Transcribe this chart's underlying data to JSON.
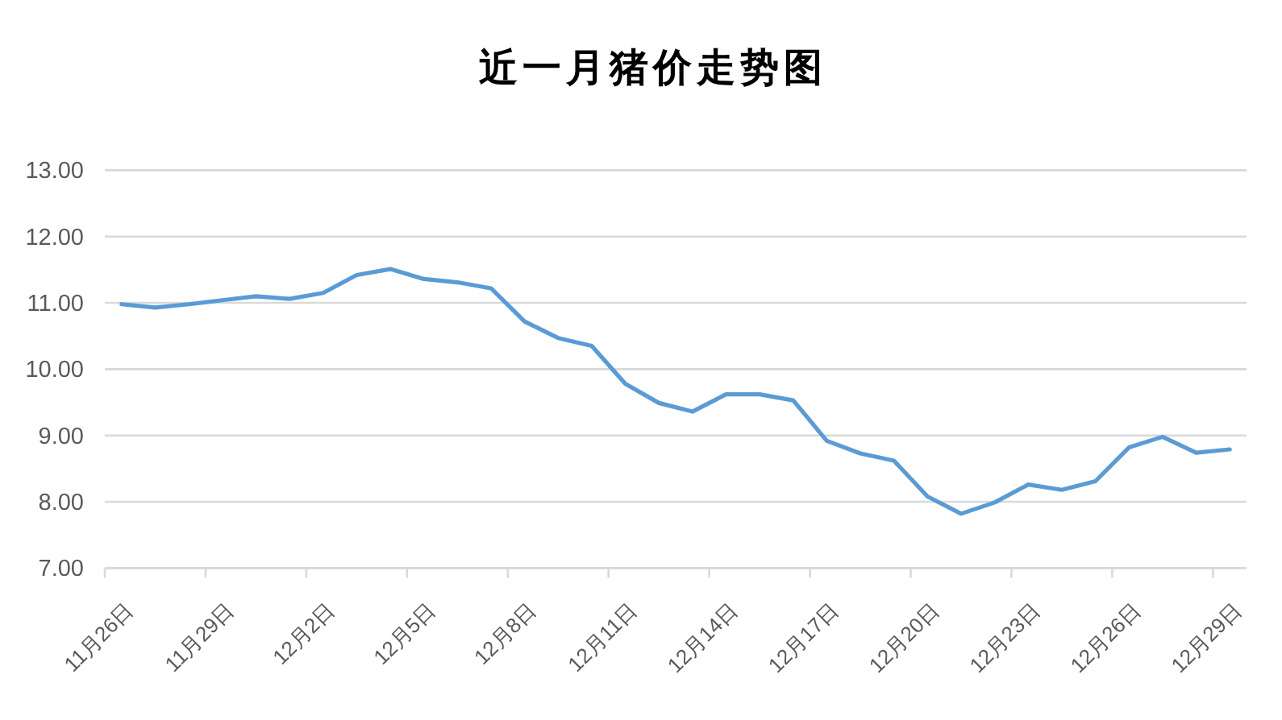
{
  "chart_data": {
    "type": "line",
    "title": "近一月猪价走势图",
    "categories": [
      "11月26日",
      null,
      null,
      "11月29日",
      null,
      null,
      "12月2日",
      null,
      null,
      "12月5日",
      null,
      null,
      "12月8日",
      null,
      null,
      "12月11日",
      null,
      null,
      "12月14日",
      null,
      null,
      "12月17日",
      null,
      null,
      "12月20日",
      null,
      null,
      "12月23日",
      null,
      null,
      "12月26日",
      null,
      null,
      "12月29日"
    ],
    "series": [
      {
        "color": "#5b9bd5",
        "values": [
          10.98,
          10.93,
          10.98,
          11.04,
          11.1,
          11.06,
          11.15,
          11.42,
          11.51,
          11.36,
          11.31,
          11.22,
          10.72,
          10.47,
          10.35,
          9.78,
          9.49,
          9.36,
          9.62,
          9.62,
          9.53,
          8.92,
          8.73,
          8.62,
          8.08,
          7.82,
          7.99,
          8.26,
          8.18,
          8.31,
          8.82,
          8.98,
          8.74,
          8.79
        ]
      }
    ],
    "ylim": [
      7,
      13
    ],
    "yticks": [
      {
        "value": 7,
        "label": "7.00"
      },
      {
        "value": 8,
        "label": "8.00"
      },
      {
        "value": 9,
        "label": "9.00"
      },
      {
        "value": 10,
        "label": "10.00"
      },
      {
        "value": 11,
        "label": "11.00"
      },
      {
        "value": 12,
        "label": "12.00"
      },
      {
        "value": 13,
        "label": "13.00"
      }
    ],
    "grid": "y",
    "marker": "none",
    "line_style": "solid"
  }
}
